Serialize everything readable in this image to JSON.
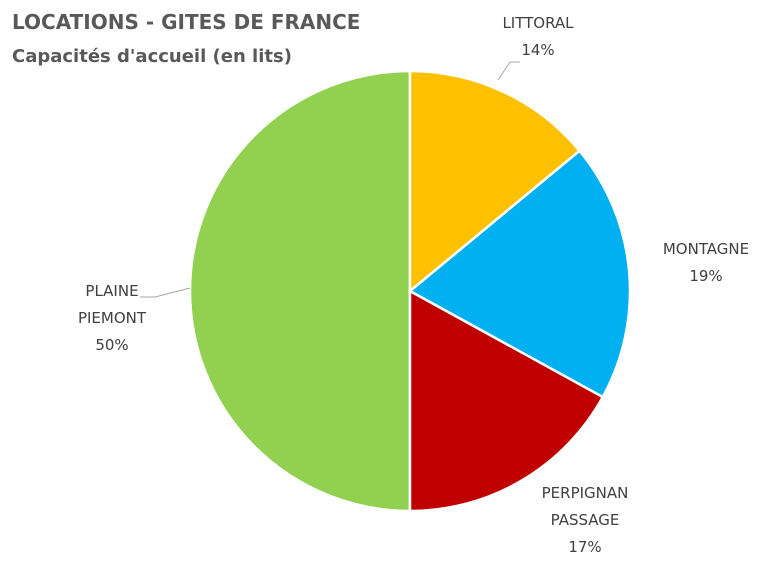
{
  "chart_data": {
    "type": "pie",
    "title": "LOCATIONS - GITES DE FRANCE",
    "subtitle": "Capacités d'accueil (en lits)",
    "categories": [
      "LITTORAL",
      "MONTAGNE",
      "PERPIGNAN PASSAGE",
      "PLAINE PIEMONT"
    ],
    "values": [
      14,
      19,
      17,
      50
    ],
    "value_labels": [
      "14%",
      "19%",
      "17%",
      "50%"
    ],
    "colors": [
      "#FFC000",
      "#00B0F0",
      "#C00000",
      "#92D050"
    ]
  }
}
